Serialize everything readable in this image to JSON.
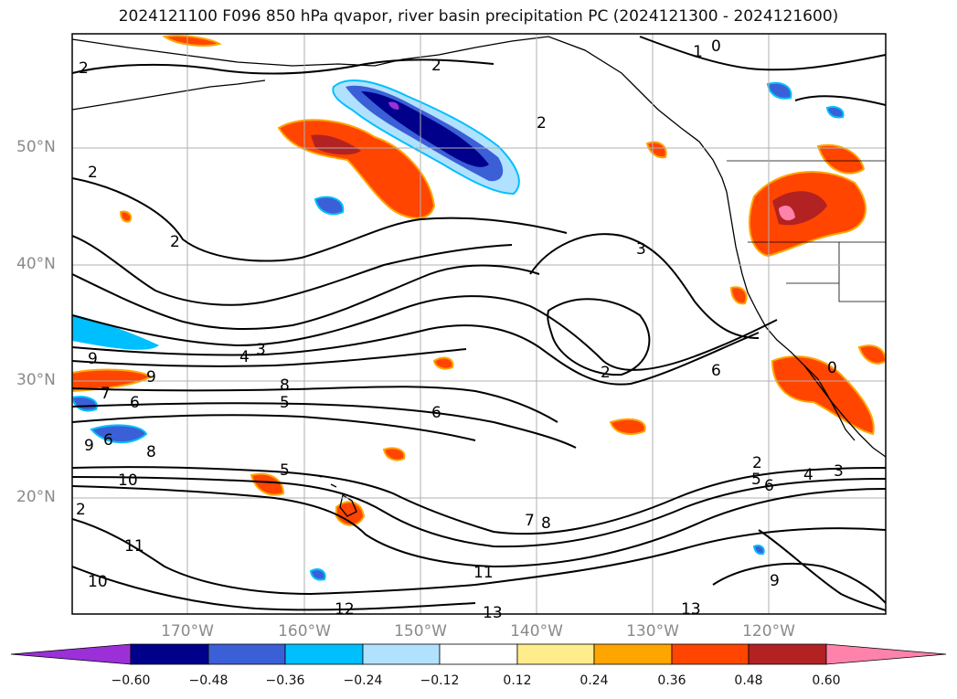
{
  "title": "2024121100 F096 850 hPa qvapor, river basin precipitation PC (2024121300 - 2024121600)",
  "lat_labels": [
    "50°N",
    "40°N",
    "30°N",
    "20°N"
  ],
  "lon_labels": [
    "170°W",
    "160°W",
    "150°W",
    "140°W",
    "130°W",
    "120°W"
  ],
  "contour_labels": [
    "2",
    "2",
    "2",
    "2",
    "1",
    "0",
    "2",
    "3",
    "3",
    "4",
    "2",
    "6",
    "9",
    "8",
    "5",
    "7",
    "6",
    "9",
    "6",
    "9",
    "6",
    "8",
    "10",
    "5",
    "2",
    "6",
    "5",
    "2",
    "4",
    "3",
    "7",
    "8",
    "11",
    "10",
    "11",
    "9",
    "12",
    "13",
    "13",
    "0"
  ],
  "colorbar": {
    "ticks": [
      "−0.60",
      "−0.48",
      "−0.36",
      "−0.24",
      "−0.12",
      "0.12",
      "0.24",
      "0.36",
      "0.48",
      "0.60"
    ],
    "colors": [
      "#9b30d9",
      "#00008b",
      "#3b5fd6",
      "#00bfff",
      "#b0e2ff",
      "#ffffff",
      "#ffec8b",
      "#ffa500",
      "#ff4500",
      "#b22222",
      "#ff82ab"
    ]
  }
}
